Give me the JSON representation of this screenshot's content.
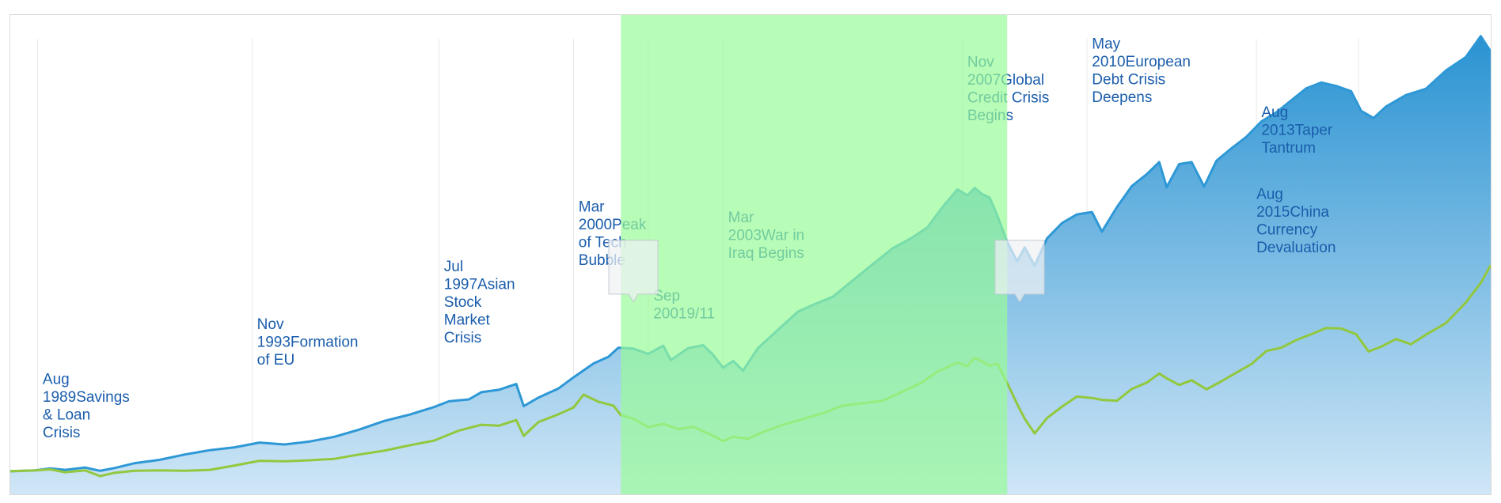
{
  "chart_data": {
    "type": "area",
    "x_range": [
      1988.5,
      2018.2
    ],
    "y_range": [
      0,
      100
    ],
    "grid": true,
    "highlight_band": {
      "x_start": 2000.75,
      "x_end": 2008.5,
      "color": "#98fb98",
      "opacity": 0.7
    },
    "series": [
      {
        "style": "area",
        "color": "#2e98d6",
        "fill_top": "#2a93d2",
        "fill_bottom": "#cfe6f6",
        "points": [
          [
            1988.5,
            4.8
          ],
          [
            1989.0,
            5.0
          ],
          [
            1989.3,
            5.4
          ],
          [
            1989.6,
            5.1
          ],
          [
            1990.0,
            5.6
          ],
          [
            1990.3,
            4.9
          ],
          [
            1990.6,
            5.5
          ],
          [
            1991.0,
            6.5
          ],
          [
            1991.5,
            7.2
          ],
          [
            1992.0,
            8.3
          ],
          [
            1992.5,
            9.2
          ],
          [
            1993.0,
            9.8
          ],
          [
            1993.5,
            10.8
          ],
          [
            1994.0,
            10.4
          ],
          [
            1994.5,
            11.0
          ],
          [
            1995.0,
            12.0
          ],
          [
            1995.5,
            13.5
          ],
          [
            1996.0,
            15.3
          ],
          [
            1996.5,
            16.6
          ],
          [
            1997.0,
            18.2
          ],
          [
            1997.3,
            19.4
          ],
          [
            1997.7,
            19.8
          ],
          [
            1997.95,
            21.3
          ],
          [
            1998.3,
            21.8
          ],
          [
            1998.65,
            23.0
          ],
          [
            1998.8,
            18.4
          ],
          [
            1999.1,
            20.2
          ],
          [
            1999.5,
            22.1
          ],
          [
            1999.8,
            24.4
          ],
          [
            2000.2,
            27.3
          ],
          [
            2000.5,
            28.7
          ],
          [
            2000.7,
            30.6
          ],
          [
            2001.0,
            30.4
          ],
          [
            2001.3,
            29.3
          ],
          [
            2001.6,
            31.0
          ],
          [
            2001.75,
            28.0
          ],
          [
            2002.1,
            30.5
          ],
          [
            2002.4,
            31.1
          ],
          [
            2002.6,
            29.1
          ],
          [
            2002.8,
            26.4
          ],
          [
            2003.0,
            27.8
          ],
          [
            2003.2,
            25.8
          ],
          [
            2003.5,
            30.5
          ],
          [
            2003.9,
            34.3
          ],
          [
            2004.3,
            38.1
          ],
          [
            2004.6,
            39.5
          ],
          [
            2005.0,
            41.2
          ],
          [
            2005.4,
            44.6
          ],
          [
            2005.8,
            48.0
          ],
          [
            2006.2,
            51.3
          ],
          [
            2006.6,
            53.6
          ],
          [
            2006.9,
            55.7
          ],
          [
            2007.2,
            59.9
          ],
          [
            2007.5,
            63.6
          ],
          [
            2007.7,
            62.4
          ],
          [
            2007.85,
            63.9
          ],
          [
            2008.0,
            62.6
          ],
          [
            2008.15,
            61.9
          ],
          [
            2008.3,
            58.2
          ],
          [
            2008.5,
            52.6
          ],
          [
            2008.7,
            48.6
          ],
          [
            2008.85,
            51.5
          ],
          [
            2009.05,
            47.7
          ],
          [
            2009.3,
            53.4
          ],
          [
            2009.6,
            56.6
          ],
          [
            2009.9,
            58.4
          ],
          [
            2010.2,
            58.9
          ],
          [
            2010.4,
            54.8
          ],
          [
            2010.7,
            59.9
          ],
          [
            2011.0,
            64.3
          ],
          [
            2011.3,
            66.8
          ],
          [
            2011.55,
            69.3
          ],
          [
            2011.7,
            64.1
          ],
          [
            2011.95,
            68.9
          ],
          [
            2012.2,
            69.3
          ],
          [
            2012.45,
            64.2
          ],
          [
            2012.7,
            69.6
          ],
          [
            2013.0,
            72.2
          ],
          [
            2013.3,
            74.6
          ],
          [
            2013.6,
            77.8
          ],
          [
            2013.9,
            79.7
          ],
          [
            2014.2,
            82.2
          ],
          [
            2014.5,
            84.7
          ],
          [
            2014.8,
            85.9
          ],
          [
            2015.1,
            85.2
          ],
          [
            2015.4,
            84.1
          ],
          [
            2015.6,
            80.0
          ],
          [
            2015.85,
            78.5
          ],
          [
            2016.1,
            80.9
          ],
          [
            2016.5,
            83.3
          ],
          [
            2016.9,
            84.6
          ],
          [
            2017.3,
            88.4
          ],
          [
            2017.7,
            91.2
          ],
          [
            2018.0,
            95.6
          ],
          [
            2018.2,
            92.4
          ]
        ]
      },
      {
        "style": "line",
        "color": "#92c83e",
        "points": [
          [
            1988.5,
            4.8
          ],
          [
            1989.0,
            5.0
          ],
          [
            1989.3,
            5.2
          ],
          [
            1989.6,
            4.6
          ],
          [
            1990.0,
            5.0
          ],
          [
            1990.3,
            3.8
          ],
          [
            1990.6,
            4.5
          ],
          [
            1991.0,
            4.9
          ],
          [
            1991.5,
            5.0
          ],
          [
            1992.0,
            4.9
          ],
          [
            1992.5,
            5.1
          ],
          [
            1993.0,
            6.0
          ],
          [
            1993.5,
            7.0
          ],
          [
            1994.0,
            6.9
          ],
          [
            1994.5,
            7.1
          ],
          [
            1995.0,
            7.4
          ],
          [
            1995.5,
            8.3
          ],
          [
            1996.0,
            9.1
          ],
          [
            1996.5,
            10.2
          ],
          [
            1997.0,
            11.2
          ],
          [
            1997.5,
            13.3
          ],
          [
            1997.95,
            14.5
          ],
          [
            1998.3,
            14.3
          ],
          [
            1998.65,
            15.5
          ],
          [
            1998.8,
            12.2
          ],
          [
            1999.1,
            15.1
          ],
          [
            1999.5,
            16.7
          ],
          [
            1999.8,
            18.1
          ],
          [
            2000.0,
            20.8
          ],
          [
            2000.3,
            19.3
          ],
          [
            2000.6,
            18.5
          ],
          [
            2000.75,
            16.5
          ],
          [
            2001.0,
            15.8
          ],
          [
            2001.3,
            14.0
          ],
          [
            2001.6,
            14.7
          ],
          [
            2001.9,
            13.6
          ],
          [
            2002.2,
            14.1
          ],
          [
            2002.6,
            12.2
          ],
          [
            2002.8,
            11.1
          ],
          [
            2003.0,
            12.0
          ],
          [
            2003.3,
            11.6
          ],
          [
            2003.6,
            13.0
          ],
          [
            2004.0,
            14.5
          ],
          [
            2004.4,
            15.7
          ],
          [
            2004.8,
            16.9
          ],
          [
            2005.2,
            18.5
          ],
          [
            2005.6,
            19.0
          ],
          [
            2006.0,
            19.5
          ],
          [
            2006.4,
            21.4
          ],
          [
            2006.8,
            23.4
          ],
          [
            2007.1,
            25.6
          ],
          [
            2007.5,
            27.5
          ],
          [
            2007.7,
            26.7
          ],
          [
            2007.85,
            28.5
          ],
          [
            2008.0,
            27.7
          ],
          [
            2008.15,
            26.8
          ],
          [
            2008.3,
            27.3
          ],
          [
            2008.5,
            23.2
          ],
          [
            2008.7,
            18.8
          ],
          [
            2008.85,
            15.8
          ],
          [
            2009.05,
            12.7
          ],
          [
            2009.3,
            15.9
          ],
          [
            2009.6,
            18.3
          ],
          [
            2009.9,
            20.4
          ],
          [
            2010.2,
            20.1
          ],
          [
            2010.4,
            19.7
          ],
          [
            2010.7,
            19.5
          ],
          [
            2011.0,
            22.0
          ],
          [
            2011.3,
            23.3
          ],
          [
            2011.55,
            25.2
          ],
          [
            2011.7,
            24.2
          ],
          [
            2011.95,
            22.8
          ],
          [
            2012.2,
            23.8
          ],
          [
            2012.5,
            21.9
          ],
          [
            2012.8,
            23.6
          ],
          [
            2013.1,
            25.4
          ],
          [
            2013.4,
            27.2
          ],
          [
            2013.7,
            29.9
          ],
          [
            2014.0,
            30.6
          ],
          [
            2014.3,
            32.2
          ],
          [
            2014.6,
            33.4
          ],
          [
            2014.9,
            34.7
          ],
          [
            2015.2,
            34.6
          ],
          [
            2015.5,
            33.4
          ],
          [
            2015.75,
            29.8
          ],
          [
            2016.0,
            30.8
          ],
          [
            2016.3,
            32.4
          ],
          [
            2016.6,
            31.3
          ],
          [
            2016.9,
            33.3
          ],
          [
            2017.3,
            35.7
          ],
          [
            2017.7,
            40.0
          ],
          [
            2018.0,
            44.1
          ],
          [
            2018.2,
            47.8
          ]
        ]
      }
    ],
    "grid_x": [
      1989.05,
      1993.35,
      1997.1,
      1999.8,
      2001.3,
      2002.8,
      2007.6,
      2010.1,
      2013.5,
      2015.55
    ],
    "annotations": [
      {
        "text": "Aug 1989Savings & Loan Crisis",
        "lines": [
          "Aug",
          "1989Savings",
          "& Loan",
          "Crisis"
        ],
        "x": 1989.15,
        "label_y": 23.0,
        "color": "#1a5dab"
      },
      {
        "text": "Nov 1993Formation of EU",
        "lines": [
          "Nov",
          "1993Formation",
          "of EU"
        ],
        "x": 1993.45,
        "label_y": 34.5,
        "color": "#1a5dab"
      },
      {
        "text": "Jul 1997Asian Stock Market Crisis",
        "lines": [
          "Jul",
          "1997Asian",
          "Stock",
          "Market",
          "Crisis"
        ],
        "x": 1997.2,
        "label_y": 46.5,
        "color": "#1a5dab"
      },
      {
        "text": "Mar 2000Peak of Tech Bubble",
        "lines": [
          "Mar",
          "2000Peak",
          "of Tech",
          "Bubble"
        ],
        "x": 1999.9,
        "label_y": 59.0,
        "color": "#1a5dab"
      },
      {
        "text": "Sep 20019/11",
        "lines": [
          "Sep",
          "20019/11"
        ],
        "x": 2001.4,
        "label_y": 40.4,
        "color": "#1a5dab"
      },
      {
        "text": "Mar 2003War in Iraq Begins",
        "lines": [
          "Mar",
          "2003War in",
          "Iraq Begins"
        ],
        "x": 2002.9,
        "label_y": 56.8,
        "color": "#1a5dab"
      },
      {
        "text": "Nov 2007Global Credit Crisis Begins",
        "lines": [
          "Nov",
          "2007Global",
          "Credit Crisis",
          "Begins"
        ],
        "x": 2007.7,
        "label_y": 89.2,
        "color": "#1a5dab"
      },
      {
        "text": "May 2010European Debt Crisis Deepens",
        "lines": [
          "May",
          "2010European",
          "Debt Crisis",
          "Deepens"
        ],
        "x": 2010.2,
        "label_y": 93.0,
        "color": "#1a5dab"
      },
      {
        "text": "Aug 2013Taper Tantrum",
        "lines": [
          "Aug",
          "2013Taper",
          "Tantrum"
        ],
        "x": 2013.6,
        "label_y": 78.7,
        "color": "#1a5dab"
      },
      {
        "text": "Aug 2015China Currency Devaluation",
        "lines": [
          "Aug",
          "2015China",
          "Currency",
          "Devaluation"
        ],
        "x": 2013.5,
        "label_y": 61.6,
        "color": "#1a5dab"
      }
    ],
    "markers": [
      {
        "x": 2001.0,
        "y": 53.0,
        "shape": "flag"
      },
      {
        "x": 2008.75,
        "y": 53.0,
        "shape": "flag"
      }
    ]
  }
}
